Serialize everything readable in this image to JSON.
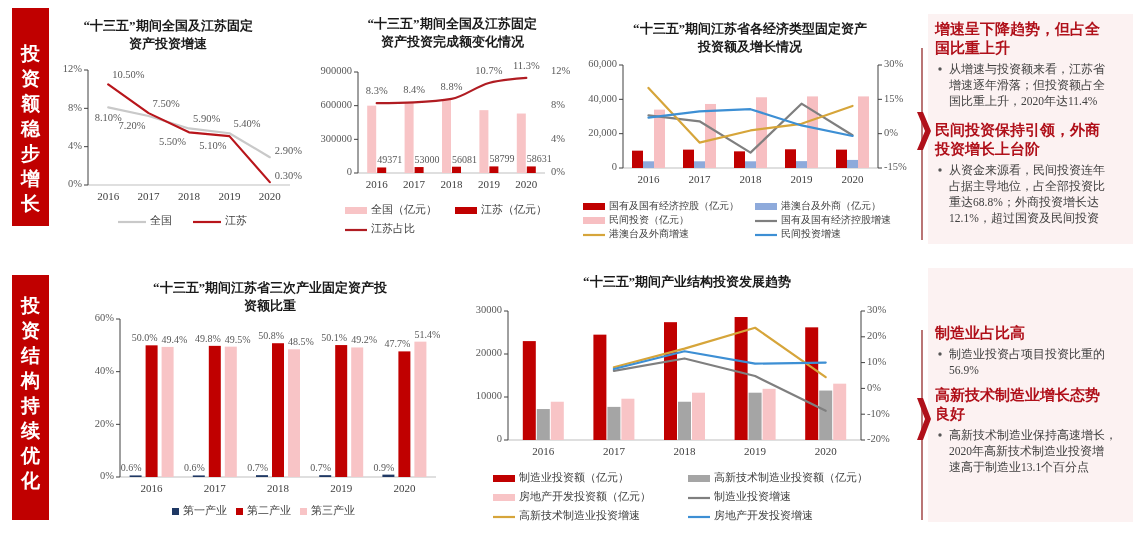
{
  "chart_data": [
    {
      "type": "other",
      "title": "投资额稳步增长"
    },
    {
      "type": "line",
      "title": "“十三五”期间全国及江苏固定资产投资增速",
      "categories": [
        "2016",
        "2017",
        "2018",
        "2019",
        "2020"
      ],
      "series": [
        {
          "name": "全国",
          "color": "#c9c9c9",
          "values": [
            8.1,
            7.2,
            5.9,
            5.4,
            2.9
          ],
          "value_labels": [
            "8.10%",
            "7.20%",
            "5.90%",
            "5.40%",
            "2.90%"
          ]
        },
        {
          "name": "江苏",
          "color": "#b8151b",
          "values": [
            10.5,
            7.5,
            5.5,
            5.1,
            0.3
          ],
          "value_labels": [
            "10.50%",
            "7.50%",
            "5.50%",
            "5.10%",
            "0.30%"
          ]
        }
      ],
      "ylim": [
        0,
        12
      ],
      "yticks": [
        {
          "value": 0,
          "label": "0%"
        },
        {
          "value": 4,
          "label": "4%"
        },
        {
          "value": 8,
          "label": "8%"
        },
        {
          "value": 12,
          "label": "12%"
        }
      ],
      "legend": "bottom"
    },
    {
      "type": "bar",
      "title": "“十三五”期间全国及江苏固定资产投资完成额变化情况",
      "categories": [
        "2016",
        "2017",
        "2018",
        "2019",
        "2020"
      ],
      "series": [
        {
          "name": "全国（亿元）",
          "color": "#f8c4c6",
          "values": [
            600000,
            630000,
            650000,
            560000,
            530000
          ]
        },
        {
          "name": "江苏（亿元）",
          "color": "#c00000",
          "values": [
            49371,
            53000,
            56081,
            58799,
            58631
          ],
          "value_labels": [
            "49371",
            "53000",
            "56081",
            "58799",
            "58631"
          ]
        },
        {
          "name": "江苏占比",
          "type": "line",
          "axis": "y2",
          "color": "#b01c22",
          "values": [
            8.3,
            8.4,
            8.8,
            10.7,
            11.3
          ],
          "value_labels": [
            "8.3%",
            "8.4%",
            "8.8%",
            "10.7%",
            "11.3%"
          ]
        }
      ],
      "ylim": [
        0,
        900000
      ],
      "yticks": [
        0,
        300000,
        600000,
        900000
      ],
      "y2lim": [
        0,
        12
      ],
      "y2ticks": [
        {
          "value": 0,
          "label": "0%"
        },
        {
          "value": 4,
          "label": "4%"
        },
        {
          "value": 8,
          "label": "8%"
        },
        {
          "value": 12,
          "label": "12%"
        }
      ],
      "legend": "bottom"
    },
    {
      "type": "bar",
      "title": "“十三五”期间江苏省各经济类型固定资产投资额及增长情况",
      "categories": [
        "2016",
        "2017",
        "2018",
        "2019",
        "2020"
      ],
      "series": [
        {
          "name": "国有及国有经济控股（亿元）",
          "color": "#c00000",
          "values": [
            10100,
            10700,
            9700,
            10900,
            10700
          ]
        },
        {
          "name": "港澳台及外商（亿元）",
          "color": "#8eaadb",
          "values": [
            3900,
            3900,
            3900,
            4000,
            4700
          ]
        },
        {
          "name": "民间投资（亿元）",
          "color": "#f7bfc2",
          "values": [
            34000,
            37300,
            41200,
            41700,
            41700
          ]
        },
        {
          "name": "国有及国有经济控股增速",
          "type": "line",
          "axis": "y2",
          "color": "#7f7f7f",
          "values": [
            8.0,
            5.4,
            -8.3,
            13.1,
            -0.7
          ]
        },
        {
          "name": "港澳台及外商增速",
          "type": "line",
          "axis": "y2",
          "color": "#d6a53a",
          "values": [
            20.0,
            -3.9,
            1.4,
            4.3,
            12.1
          ]
        },
        {
          "name": "民间投资增速",
          "type": "line",
          "axis": "y2",
          "color": "#3d8fd4",
          "values": [
            7.0,
            9.7,
            10.7,
            3.6,
            -1.0
          ]
        }
      ],
      "ylim": [
        0,
        60000
      ],
      "yticks": [
        0,
        {
          "value": 20000,
          "label": "20,000"
        },
        {
          "value": 40000,
          "label": "40,000"
        },
        {
          "value": 60000,
          "label": "60,000"
        }
      ],
      "y2lim": [
        -15,
        30
      ],
      "y2ticks": [
        {
          "value": -15,
          "label": "-15%"
        },
        {
          "value": 0,
          "label": "0%"
        },
        {
          "value": 15,
          "label": "15%"
        },
        {
          "value": 30,
          "label": "30%"
        }
      ],
      "legend": "bottom"
    },
    {
      "type": "other",
      "title": "增速呈下降趋势，但占全国比重上升",
      "annotations": [
        "从增速与投资额来看，江苏省增速逐年滑落；但投资额占全国比重上升，2020年达11.4%"
      ]
    },
    {
      "type": "other",
      "title": "民间投资保持引领，外商投资增长上台阶",
      "annotations": [
        "从资金来源看，民间投资连年占据主导地位，占全部投资比重达68.8%；外商投资增长达12.1%，超过国资及民间投资"
      ]
    },
    {
      "type": "other",
      "title": "投资结构持续优化"
    },
    {
      "type": "bar",
      "title": "“十三五”期间江苏省三次产业固定资产投资额比重",
      "categories": [
        "2016",
        "2017",
        "2018",
        "2019",
        "2020"
      ],
      "series": [
        {
          "name": "第一产业",
          "color": "#1f3864",
          "values": [
            0.6,
            0.6,
            0.7,
            0.7,
            0.9
          ],
          "value_labels": [
            "0.6%",
            "0.6%",
            "0.7%",
            "0.7%",
            "0.9%"
          ]
        },
        {
          "name": "第二产业",
          "color": "#c00000",
          "values": [
            50.0,
            49.8,
            50.8,
            50.1,
            47.7
          ],
          "value_labels": [
            "50.0%",
            "49.8%",
            "50.8%",
            "50.1%",
            "47.7%"
          ]
        },
        {
          "name": "第三产业",
          "color": "#f8c4c6",
          "values": [
            49.4,
            49.5,
            48.5,
            49.2,
            51.4
          ],
          "value_labels": [
            "49.4%",
            "49.5%",
            "48.5%",
            "49.2%",
            "51.4%"
          ]
        }
      ],
      "ylim": [
        0,
        60
      ],
      "yticks": [
        {
          "value": 0,
          "label": "0%"
        },
        {
          "value": 20,
          "label": "20%"
        },
        {
          "value": 40,
          "label": "40%"
        },
        {
          "value": 60,
          "label": "60%"
        }
      ],
      "legend": "bottom"
    },
    {
      "type": "bar",
      "title": "“十三五”期间产业结构投资发展趋势",
      "categories": [
        "2016",
        "2017",
        "2018",
        "2019",
        "2020"
      ],
      "series": [
        {
          "name": "制造业投资额（亿元）",
          "color": "#c00000",
          "values": [
            23000,
            24500,
            27400,
            28600,
            26200
          ]
        },
        {
          "name": "高新技术制造业投资额（亿元）",
          "color": "#a5a5a5",
          "values": [
            7200,
            7700,
            8900,
            11000,
            11500
          ]
        },
        {
          "name": "房地产开发投资额（亿元）",
          "color": "#f8c4c6",
          "values": [
            8900,
            9600,
            11000,
            11900,
            13100
          ]
        },
        {
          "name": "制造业投资增速",
          "type": "line",
          "axis": "y2",
          "color": "#7f7f7f",
          "values": [
            null,
            6.8,
            11.6,
            4.8,
            -8.7
          ]
        },
        {
          "name": "高新技术制造业投资增速",
          "type": "line",
          "axis": "y2",
          "color": "#d6a53a",
          "values": [
            null,
            8.2,
            15.4,
            23.5,
            4.4
          ]
        },
        {
          "name": "房地产开发投资增速",
          "type": "line",
          "axis": "y2",
          "color": "#3d8fd4",
          "values": [
            null,
            7.5,
            14.4,
            9.6,
            10.0
          ]
        }
      ],
      "ylim": [
        0,
        30000
      ],
      "yticks": [
        0,
        10000,
        20000,
        30000
      ],
      "y2lim": [
        -20,
        30
      ],
      "y2ticks": [
        {
          "value": -20,
          "label": "-20%"
        },
        {
          "value": -10,
          "label": "-10%"
        },
        {
          "value": 0,
          "label": "0%"
        },
        {
          "value": 10,
          "label": "10%"
        },
        {
          "value": 20,
          "label": "20%"
        },
        {
          "value": 30,
          "label": "30%"
        }
      ],
      "legend": "bottom"
    },
    {
      "type": "other",
      "title": "制造业占比高",
      "annotations": [
        "制造业投资占项目投资比重的56.9%"
      ]
    },
    {
      "type": "other",
      "title": "高新技术制造业增长态势良好",
      "annotations": [
        "高新技术制造业保持高速增长，2020年高新技术制造业投资增速高于制造业13.1个百分点"
      ]
    }
  ]
}
